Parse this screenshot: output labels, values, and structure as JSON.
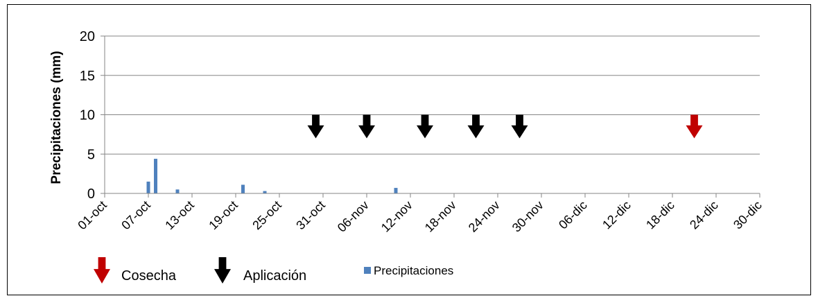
{
  "chart_data": {
    "type": "bar",
    "ylabel": "Precipitaciones (mm)",
    "xlabel": "",
    "ylim": [
      0,
      20
    ],
    "yticks": [
      0,
      5,
      10,
      15,
      20
    ],
    "grid": true,
    "xrange": [
      "2015-10-01",
      "2015-12-31"
    ],
    "xtick_labels": [
      "01-oct",
      "07-oct",
      "13-oct",
      "19-oct",
      "25-oct",
      "31-oct",
      "06-nov",
      "12-nov",
      "18-nov",
      "24-nov",
      "30-nov",
      "06-dic",
      "12-dic",
      "18-dic",
      "24-dic",
      "30-dic"
    ],
    "series": [
      {
        "name": "Precipitaciones",
        "color": "#4F81BD",
        "points": [
          {
            "date": "2015-10-07",
            "value": 1.5
          },
          {
            "date": "2015-10-08",
            "value": 4.4
          },
          {
            "date": "2015-10-11",
            "value": 0.5
          },
          {
            "date": "2015-10-20",
            "value": 1.1
          },
          {
            "date": "2015-10-23",
            "value": 0.3
          },
          {
            "date": "2015-11-10",
            "value": 0.7
          }
        ]
      }
    ],
    "annotations": {
      "aplicacion": {
        "label": "Aplicación",
        "color": "#000000",
        "dates": [
          "2015-10-30",
          "2015-11-06",
          "2015-11-14",
          "2015-11-21",
          "2015-11-27"
        ],
        "y_top": 10,
        "y_tip": 7
      },
      "cosecha": {
        "label": "Cosecha",
        "color": "#C00000",
        "dates": [
          "2015-12-21"
        ],
        "y_top": 10,
        "y_tip": 7
      }
    },
    "legend": {
      "placement": "bottom-left",
      "entries": [
        "Cosecha",
        "Aplicación",
        "Precipitaciones"
      ]
    }
  }
}
